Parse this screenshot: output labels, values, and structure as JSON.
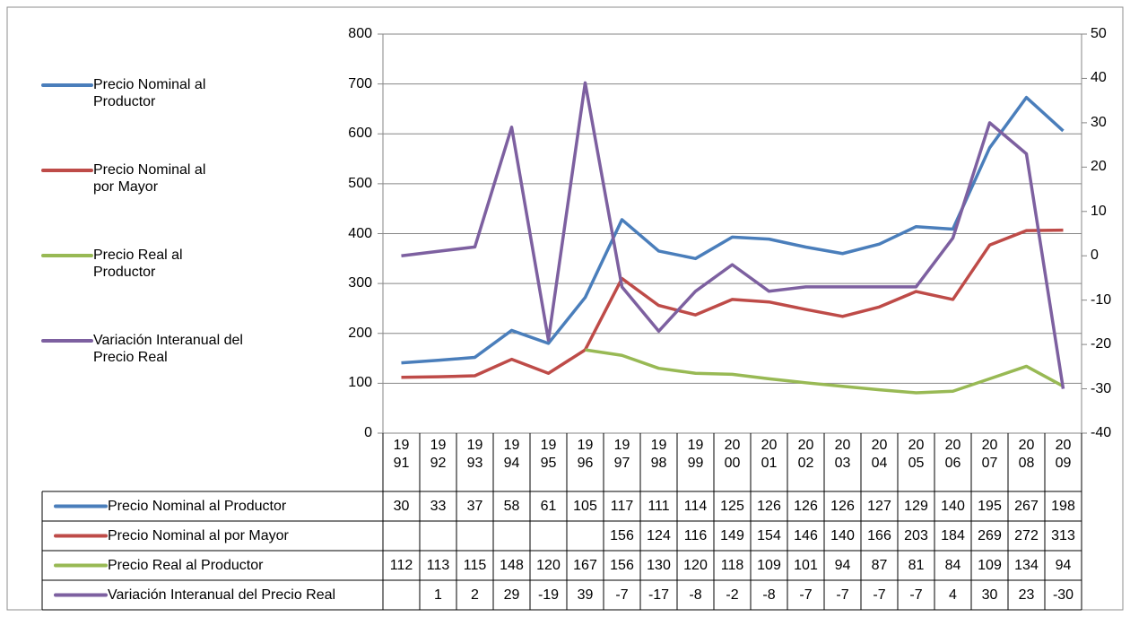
{
  "chart_data": {
    "type": "line",
    "categories": [
      "1991",
      "1992",
      "1993",
      "1994",
      "1995",
      "1996",
      "1997",
      "1998",
      "1999",
      "2000",
      "2001",
      "2002",
      "2003",
      "2004",
      "2005",
      "2006",
      "2007",
      "2008",
      "2009"
    ],
    "series": [
      {
        "name": "Precio Nominal al Productor",
        "color": "#4a7ebb",
        "values": [
          141,
          146,
          152,
          206,
          180,
          272,
          428,
          365,
          350,
          393,
          389,
          373,
          360,
          379,
          414,
          409,
          572,
          673,
          606
        ]
      },
      {
        "name": "Precio Nominal al por Mayor",
        "color": "#be4b48",
        "values": [
          112,
          113,
          115,
          148,
          120,
          167,
          310,
          256,
          237,
          268,
          263,
          248,
          234,
          253,
          284,
          268,
          377,
          406,
          407
        ]
      },
      {
        "name": "Precio Real al Productor",
        "color": "#98b954",
        "values": [
          null,
          null,
          null,
          null,
          null,
          167,
          156,
          130,
          120,
          118,
          109,
          101,
          94,
          87,
          81,
          84,
          109,
          134,
          94
        ]
      },
      {
        "name": "Variación Interanual del Precio Real",
        "color": "#7d60a0",
        "axis": "y2",
        "values": [
          0,
          1,
          2,
          29,
          -19,
          39,
          -7,
          -17,
          -8,
          -2,
          -8,
          -7,
          -7,
          -7,
          -7,
          4,
          30,
          23,
          -30
        ]
      }
    ],
    "ylim": [
      0,
      800
    ],
    "yticks": [
      0,
      100,
      200,
      300,
      400,
      500,
      600,
      700,
      800
    ],
    "y2lim": [
      -40,
      50
    ],
    "y2ticks": [
      -40,
      -30,
      -20,
      -10,
      0,
      10,
      20,
      30,
      40,
      50
    ],
    "grid": true,
    "table": {
      "rows": [
        [
          30,
          33,
          37,
          58,
          61,
          105,
          117,
          111,
          114,
          125,
          126,
          126,
          126,
          127,
          129,
          140,
          195,
          267,
          198
        ],
        [
          null,
          null,
          null,
          null,
          null,
          null,
          156,
          124,
          116,
          149,
          154,
          146,
          140,
          166,
          203,
          184,
          269,
          272,
          313
        ],
        [
          112,
          113,
          115,
          148,
          120,
          167,
          156,
          130,
          120,
          118,
          109,
          101,
          94,
          87,
          81,
          84,
          109,
          134,
          94
        ],
        [
          null,
          1,
          2,
          29,
          -19,
          39,
          -7,
          -17,
          -8,
          -2,
          -8,
          -7,
          -7,
          -7,
          -7,
          4,
          30,
          23,
          -30
        ]
      ]
    }
  }
}
